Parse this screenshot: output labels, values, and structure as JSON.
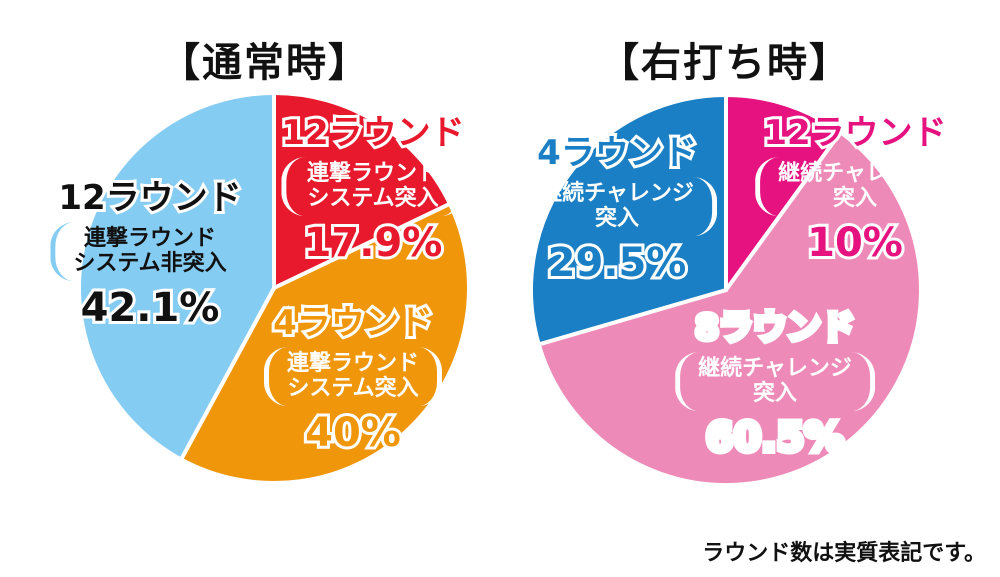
{
  "footnote": "ラウンド数は実質表記です。",
  "chart_data": [
    {
      "type": "pie",
      "title": "【通常時】",
      "slices": [
        {
          "head": "12ラウンド",
          "detail": [
            "連撃ラウンド",
            "システム突入"
          ],
          "label": "17.9%",
          "value": 17.9,
          "color": "#e8192c",
          "textColor": "#e8192c",
          "detailColor": "#ffffff"
        },
        {
          "head": "4ラウンド",
          "detail": [
            "連撃ラウンド",
            "システム突入"
          ],
          "label": "40%",
          "value": 40,
          "color": "#f0960a",
          "textColor": "#f0960a",
          "detailColor": "#ffffff"
        },
        {
          "head": "12ラウンド",
          "detail": [
            "連撃ラウンド",
            "システム非突入"
          ],
          "label": "42.1%",
          "value": 42.1,
          "color": "#85ccf2",
          "textColor": "#111111",
          "detailColor": "#111111"
        }
      ]
    },
    {
      "type": "pie",
      "title": "【右打ち時】",
      "slices": [
        {
          "head": "12ラウンド",
          "detail": [
            "継続チャレンジ",
            "突入"
          ],
          "label": "10%",
          "value": 10,
          "color": "#e5127f",
          "textColor": "#e5127f",
          "detailColor": "#ffffff"
        },
        {
          "head": "8ラウンド",
          "detail": [
            "継続チャレンジ",
            "突入"
          ],
          "label": "60.5%",
          "value": 60.5,
          "color": "#ee8ab8",
          "textColor": "#ffffff",
          "detailColor": "#ffffff"
        },
        {
          "head": "4ラウンド",
          "detail": [
            "継続チャレンジ",
            "突入"
          ],
          "label": "29.5%",
          "value": 29.5,
          "color": "#1a7fc4",
          "textColor": "#1a7fc4",
          "detailColor": "#ffffff"
        }
      ]
    }
  ]
}
